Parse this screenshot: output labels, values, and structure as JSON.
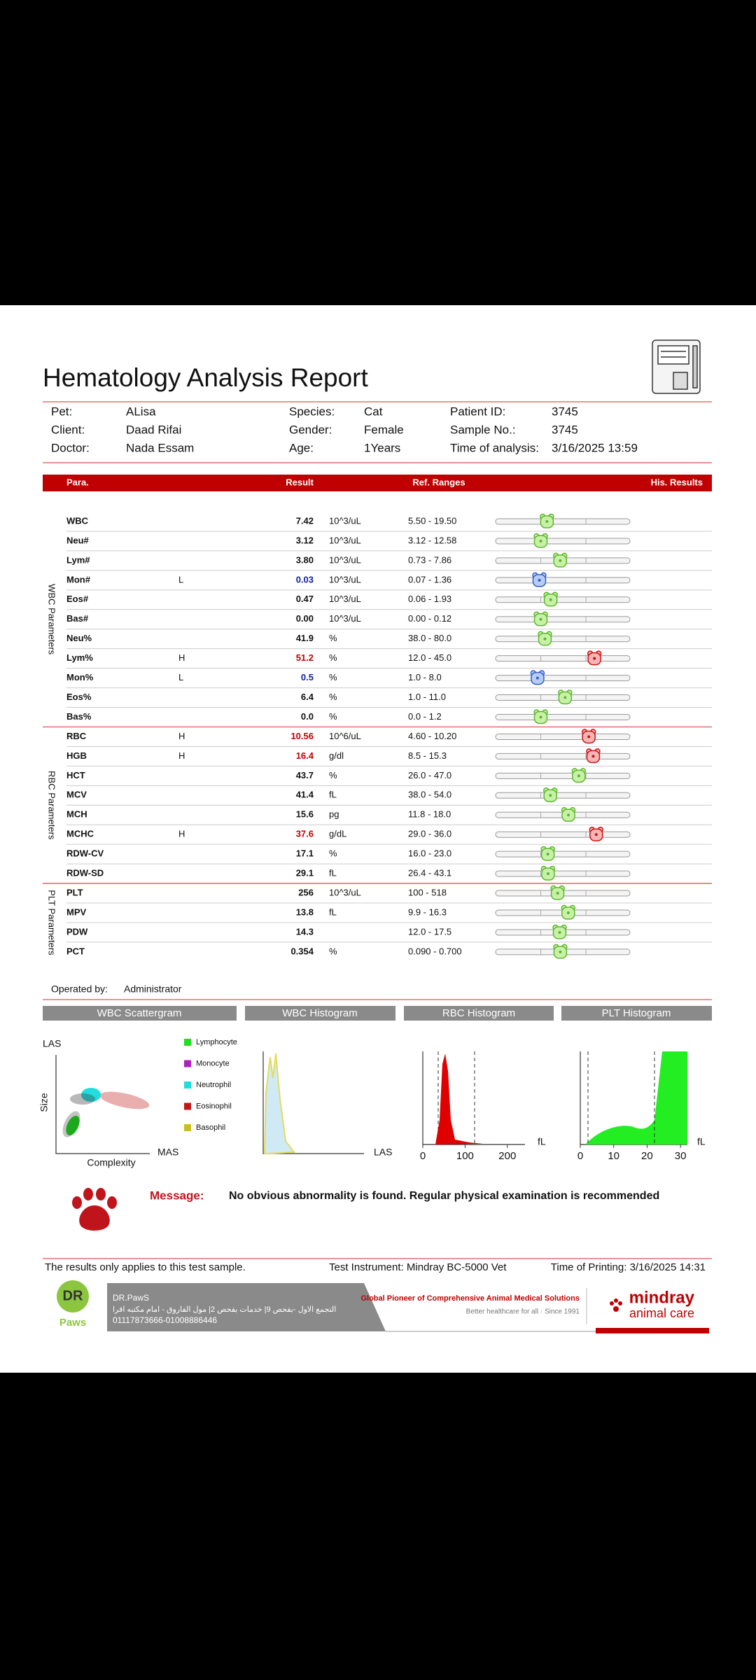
{
  "header": {
    "title": "Hematology Analysis Report"
  },
  "patient": [
    [
      {
        "label": "Pet:",
        "value": "ALisa"
      },
      {
        "label": "Species:",
        "value": "Cat"
      },
      {
        "label": "Patient ID:",
        "value": "3745"
      }
    ],
    [
      {
        "label": "Client:",
        "value": "Daad Rifai"
      },
      {
        "label": "Gender:",
        "value": "Female"
      },
      {
        "label": "Sample No.:",
        "value": "3745"
      }
    ],
    [
      {
        "label": "Doctor:",
        "value": "Nada Essam"
      },
      {
        "label": "Age:",
        "value": "1Years"
      },
      {
        "label": "Time of analysis:",
        "value": "3/16/2025 13:59"
      }
    ]
  ],
  "table": {
    "columns": [
      "Para.",
      "Result",
      "Ref. Ranges",
      "His. Results"
    ],
    "groups": [
      {
        "label": "WBC Parameters",
        "rows": [
          {
            "name": "WBC",
            "result": "7.42",
            "unit": "10^3/uL",
            "range": "5.50 - 19.50"
          },
          {
            "name": "Neu#",
            "result": "3.12",
            "unit": "10^3/uL",
            "range": "3.12 - 12.58"
          },
          {
            "name": "Lym#",
            "result": "3.80",
            "unit": "10^3/uL",
            "range": "0.73 - 7.86"
          },
          {
            "name": "Mon#",
            "flag": "L",
            "result": "0.03",
            "unit": "10^3/uL",
            "range": "0.07 - 1.36"
          },
          {
            "name": "Eos#",
            "result": "0.47",
            "unit": "10^3/uL",
            "range": "0.06 - 1.93"
          },
          {
            "name": "Bas#",
            "result": "0.00",
            "unit": "10^3/uL",
            "range": "0.00 - 0.12"
          },
          {
            "name": "Neu%",
            "result": "41.9",
            "unit": "%",
            "range": "38.0 - 80.0"
          },
          {
            "name": "Lym%",
            "flag": "H",
            "result": "51.2",
            "unit": "%",
            "range": "12.0 - 45.0"
          },
          {
            "name": "Mon%",
            "flag": "L",
            "result": "0.5",
            "unit": "%",
            "range": "1.0 - 8.0"
          },
          {
            "name": "Eos%",
            "result": "6.4",
            "unit": "%",
            "range": "1.0 - 11.0"
          },
          {
            "name": "Bas%",
            "result": "0.0",
            "unit": "%",
            "range": "0.0 - 1.2"
          }
        ]
      },
      {
        "label": "RBC Parameters",
        "rows": [
          {
            "name": "RBC",
            "flag": "H",
            "result": "10.56",
            "unit": "10^6/uL",
            "range": "4.60 - 10.20"
          },
          {
            "name": "HGB",
            "flag": "H",
            "result": "16.4",
            "unit": "g/dl",
            "range": "8.5 - 15.3"
          },
          {
            "name": "HCT",
            "result": "43.7",
            "unit": "%",
            "range": "26.0 - 47.0"
          },
          {
            "name": "MCV",
            "result": "41.4",
            "unit": "fL",
            "range": "38.0 - 54.0"
          },
          {
            "name": "MCH",
            "result": "15.6",
            "unit": "pg",
            "range": "11.8 - 18.0"
          },
          {
            "name": "MCHC",
            "flag": "H",
            "result": "37.6",
            "unit": "g/dL",
            "range": "29.0 - 36.0"
          },
          {
            "name": "RDW-CV",
            "result": "17.1",
            "unit": "%",
            "range": "16.0 - 23.0"
          },
          {
            "name": "RDW-SD",
            "result": "29.1",
            "unit": "fL",
            "range": "26.4 - 43.1"
          }
        ]
      },
      {
        "label": "PLT Parameters",
        "rows": [
          {
            "name": "PLT",
            "result": "256",
            "unit": "10^3/uL",
            "range": "100 - 518"
          },
          {
            "name": "MPV",
            "result": "13.8",
            "unit": "fL",
            "range": "9.9 - 16.3"
          },
          {
            "name": "PDW",
            "result": "14.3",
            "range": "12.0 - 17.5"
          },
          {
            "name": "PCT",
            "result": "0.354",
            "unit": "%",
            "range": "0.090 - 0.700"
          }
        ]
      }
    ]
  },
  "operator": {
    "label": "Operated by:",
    "value": "Administrator"
  },
  "panels": {
    "titles": [
      "WBC Scattergram",
      "WBC Histogram",
      "RBC Histogram",
      "PLT Histogram"
    ],
    "scatter": {
      "y_label": "LAS",
      "y_title": "Size",
      "x_title": "Complexity",
      "x_label": "MAS",
      "legend": [
        {
          "name": "Lymphocyte",
          "color": "#22dd22"
        },
        {
          "name": "Monocyte",
          "color": "#b020c0"
        },
        {
          "name": "Neutrophil",
          "color": "#22dddd"
        },
        {
          "name": "Eosinophil",
          "color": "#c01818"
        },
        {
          "name": "Basophil",
          "color": "#c8c020"
        }
      ]
    },
    "wbc_hist": {
      "x_label": "LAS"
    },
    "rbc_hist": {
      "xticks": [
        0,
        100,
        200
      ],
      "unit": "fL"
    },
    "plt_hist": {
      "xticks": [
        0,
        10,
        20,
        30
      ],
      "unit": "fL"
    }
  },
  "message": {
    "label": "Message:",
    "text": "No obvious abnormality is found. Regular physical examination is recommended"
  },
  "footer": {
    "note": "The results only applies to this test sample.",
    "instrument": "Test Instrument: Mindray BC-5000 Vet",
    "printed": "Time of Printing: 3/16/2025 14:31"
  },
  "banner": {
    "logo_top": "DR",
    "logo_bottom": "Paws",
    "clinic": "DR.PawS",
    "address": "التجمع الاول -بفحص 9| خدمات بفحص 2| مول الفاروق - امام مكتبه اقرا",
    "phones": "01117873666-01008886446",
    "slogan": "Global Pioneer of Comprehensive Animal Medical Solutions",
    "tagline": "Better healthcare for all  ·  Since 1991",
    "brand": "mindray",
    "brand_sub": "animal care"
  }
}
